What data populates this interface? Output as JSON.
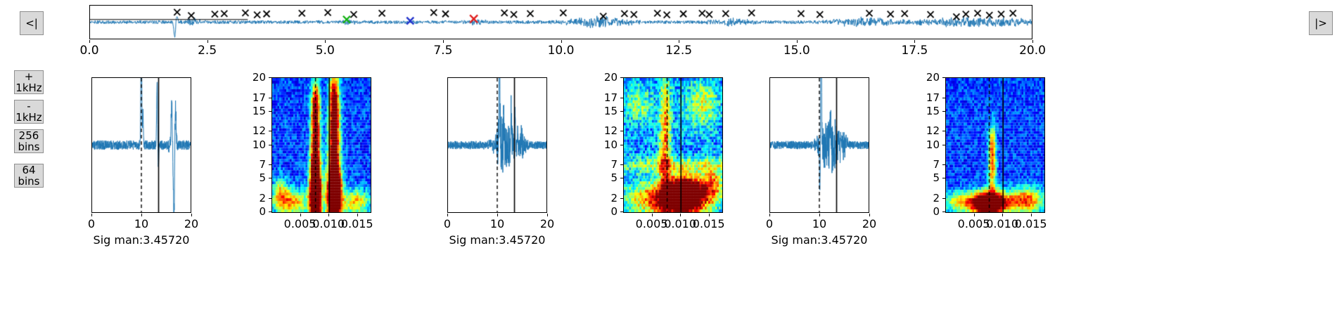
{
  "nav": {
    "prev_label": "<|",
    "next_label": "|>"
  },
  "controls": [
    {
      "line1": "+",
      "line2": "1kHz"
    },
    {
      "line1": "-",
      "line2": "1kHz"
    },
    {
      "line1": "256",
      "line2": "bins"
    },
    {
      "line1": "64",
      "line2": "bins"
    }
  ],
  "colors": {
    "line": "#1f77b4",
    "marker_black": "#000000",
    "marker_green": "#10b010",
    "marker_blue": "#2233cc",
    "marker_red": "#e02020",
    "button_bg": "#d9d9d9"
  },
  "chart_data": {
    "overview": {
      "type": "line",
      "xlim": [
        0,
        20
      ],
      "xticks": {
        "values": [
          0,
          2.5,
          5,
          7.5,
          10,
          12.5,
          15,
          17.5,
          20
        ],
        "labels": [
          "0.0",
          "2.5",
          "5.0",
          "7.5",
          "10.0",
          "12.5",
          "15.0",
          "17.5",
          "20.0"
        ]
      },
      "noise": 0.1,
      "seed": 11,
      "samples": 2600,
      "black_segment": {
        "x0": 0,
        "x1": 3.35,
        "fy": 0.42
      },
      "events": [
        {
          "type": "spike",
          "x": 1.8,
          "w": 0.02,
          "amp": 0.95,
          "dir": -1
        },
        {
          "type": "spike",
          "x": 1.84,
          "w": 0.02,
          "amp": 0.5,
          "dir": 1
        },
        {
          "type": "burst",
          "x": 2.2,
          "w": 0.15,
          "amp": 0.18
        },
        {
          "type": "burst",
          "x": 5.5,
          "w": 0.2,
          "amp": 0.12
        },
        {
          "type": "burst",
          "x": 8.2,
          "w": 0.2,
          "amp": 0.12
        },
        {
          "type": "burst",
          "x": 10.8,
          "w": 0.45,
          "amp": 0.3
        },
        {
          "type": "burst",
          "x": 13.6,
          "w": 0.3,
          "amp": 0.18
        },
        {
          "type": "burst",
          "x": 16.4,
          "w": 0.5,
          "amp": 0.25
        },
        {
          "type": "burst",
          "x": 18.9,
          "w": 1.0,
          "amp": 0.26
        }
      ],
      "markers": {
        "black_x": [
          [
            1.85,
            0.2
          ],
          [
            2.15,
            0.3
          ],
          [
            2.65,
            0.26
          ],
          [
            2.85,
            0.24
          ],
          [
            3.3,
            0.22
          ],
          [
            3.55,
            0.28
          ],
          [
            3.75,
            0.25
          ],
          [
            4.5,
            0.23
          ],
          [
            5.05,
            0.21
          ],
          [
            5.6,
            0.27
          ],
          [
            6.2,
            0.23
          ],
          [
            7.3,
            0.21
          ],
          [
            7.55,
            0.25
          ],
          [
            8.8,
            0.22
          ],
          [
            9.0,
            0.27
          ],
          [
            9.35,
            0.24
          ],
          [
            10.05,
            0.22
          ],
          [
            10.9,
            0.32
          ],
          [
            11.35,
            0.24
          ],
          [
            11.55,
            0.27
          ],
          [
            12.05,
            0.23
          ],
          [
            12.25,
            0.28
          ],
          [
            12.6,
            0.25
          ],
          [
            13.0,
            0.23
          ],
          [
            13.15,
            0.27
          ],
          [
            13.5,
            0.24
          ],
          [
            14.05,
            0.22
          ],
          [
            15.1,
            0.24
          ],
          [
            15.5,
            0.27
          ],
          [
            16.55,
            0.23
          ],
          [
            17.0,
            0.26
          ],
          [
            17.3,
            0.24
          ],
          [
            17.85,
            0.27
          ],
          [
            18.4,
            0.34
          ],
          [
            18.6,
            0.26
          ],
          [
            18.85,
            0.23
          ],
          [
            19.1,
            0.29
          ],
          [
            19.35,
            0.26
          ],
          [
            19.6,
            0.23
          ]
        ],
        "special": [
          {
            "x": 5.45,
            "fy": 0.42,
            "color": "#10b010",
            "size": 5
          },
          {
            "x": 6.8,
            "fy": 0.46,
            "color": "#2233cc",
            "size": 5
          },
          {
            "x": 8.15,
            "fy": 0.4,
            "color": "#e02020",
            "size": 5.5
          }
        ]
      }
    },
    "groups": [
      {
        "caption": "Sig man:3.45720",
        "waveform": {
          "type": "line",
          "xlim": [
            0,
            20
          ],
          "xticks": {
            "values": [
              0,
              10,
              20
            ],
            "labels": [
              "0",
              "10",
              "20"
            ]
          },
          "noise": 0.07,
          "seed": 3,
          "vlines": {
            "dashed_x": 10,
            "solid_x": 13.5
          },
          "events": [
            {
              "type": "spike",
              "x": 10.0,
              "w": 0.1,
              "amp": 1.7,
              "dir": 1
            },
            {
              "type": "spike",
              "x": 10.3,
              "w": 0.08,
              "amp": 0.55,
              "dir": 1
            },
            {
              "type": "spike",
              "x": 10.15,
              "w": 0.06,
              "amp": 0.35,
              "dir": -1
            },
            {
              "type": "spike",
              "x": 13.2,
              "w": 0.1,
              "amp": 0.9,
              "dir": 1
            },
            {
              "type": "spike",
              "x": 13.45,
              "w": 0.08,
              "amp": 0.35,
              "dir": -1
            },
            {
              "type": "burst",
              "x": 16.5,
              "w": 0.5,
              "amp": 0.25
            },
            {
              "type": "spike",
              "x": 16.15,
              "w": 0.1,
              "amp": 0.6,
              "dir": 1
            },
            {
              "type": "spike",
              "x": 16.6,
              "w": 0.1,
              "amp": 1.15,
              "dir": -1
            },
            {
              "type": "spike",
              "x": 16.95,
              "w": 0.1,
              "amp": 0.55,
              "dir": 1
            }
          ]
        },
        "spectrogram": {
          "type": "heatmap",
          "xlim": [
            0,
            0.0175
          ],
          "ylim": [
            0,
            20
          ],
          "xticks": {
            "values": [
              0.005,
              0.01,
              0.015
            ],
            "labels": [
              "0.005",
              "0.010",
              "0.015"
            ]
          },
          "yticks": {
            "values": [
              0,
              2,
              5,
              7,
              10,
              12,
              15,
              17,
              20
            ],
            "labels": [
              "0",
              "2",
              "5",
              "7",
              "10",
              "12",
              "15",
              "17",
              "20"
            ]
          },
          "base": 0.08,
          "noise": 0.22,
          "seed": 21,
          "vlines": {
            "dashed_frac": 0.44,
            "solid_frac": 0.58
          },
          "blobs": [
            {
              "cx": 0.44,
              "cy": 2.5,
              "sx": 0.04,
              "sy": 3.5,
              "amp": 1.5
            },
            {
              "cx": 0.44,
              "cy": 10,
              "sx": 0.032,
              "sy": 5,
              "amp": 0.85
            },
            {
              "cx": 0.44,
              "cy": 16,
              "sx": 0.03,
              "sy": 2.5,
              "amp": 0.5
            },
            {
              "cx": 0.63,
              "cy": 2.5,
              "sx": 0.05,
              "sy": 3,
              "amp": 1.5
            },
            {
              "cx": 0.63,
              "cy": 10,
              "sx": 0.04,
              "sy": 5,
              "amp": 0.9
            },
            {
              "cx": 0.63,
              "cy": 17,
              "sx": 0.035,
              "sy": 3,
              "amp": 0.6
            },
            {
              "cx": 0.2,
              "cy": 1.5,
              "sx": 0.12,
              "sy": 1.3,
              "amp": 0.55
            },
            {
              "cx": 0.85,
              "cy": 1.5,
              "sx": 0.1,
              "sy": 1.3,
              "amp": 0.5
            },
            {
              "cx": 0.08,
              "cy": 3,
              "sx": 0.05,
              "sy": 1.5,
              "amp": 0.4
            }
          ]
        }
      },
      {
        "caption": "Sig man:3.45720",
        "waveform": {
          "type": "line",
          "xlim": [
            0,
            20
          ],
          "xticks": {
            "values": [
              0,
              10,
              20
            ],
            "labels": [
              "0",
              "10",
              "20"
            ]
          },
          "noise": 0.06,
          "seed": 5,
          "vlines": {
            "dashed_x": 10,
            "solid_x": 13.5
          },
          "events": [
            {
              "type": "burst",
              "x": 12.2,
              "w": 1.8,
              "amp": 0.3
            },
            {
              "type": "burst",
              "x": 10.7,
              "w": 0.5,
              "amp": 0.45
            },
            {
              "type": "spike",
              "x": 10.45,
              "w": 0.09,
              "amp": 1.7,
              "dir": 1
            },
            {
              "type": "spike",
              "x": 11.3,
              "w": 0.08,
              "amp": 0.5,
              "dir": 1
            },
            {
              "type": "spike",
              "x": 12.8,
              "w": 0.08,
              "amp": 0.5,
              "dir": 1
            },
            {
              "type": "spike",
              "x": 13.6,
              "w": 0.08,
              "amp": 0.45,
              "dir": 1
            },
            {
              "type": "burst",
              "x": 14.8,
              "w": 0.7,
              "amp": 0.2
            }
          ]
        },
        "spectrogram": {
          "type": "heatmap",
          "xlim": [
            0,
            0.0175
          ],
          "ylim": [
            0,
            20
          ],
          "xticks": {
            "values": [
              0.005,
              0.01,
              0.015
            ],
            "labels": [
              "0.005",
              "0.010",
              "0.015"
            ]
          },
          "yticks": {
            "values": [
              0,
              2,
              5,
              7,
              10,
              12,
              15,
              17,
              20
            ],
            "labels": [
              "0",
              "2",
              "5",
              "7",
              "10",
              "12",
              "15",
              "17",
              "20"
            ]
          },
          "base": 0.12,
          "noise": 0.3,
          "seed": 22,
          "vlines": {
            "dashed_frac": 0.44,
            "solid_frac": 0.58
          },
          "blobs": [
            {
              "cx": 0.62,
              "cy": 2.5,
              "sx": 0.13,
              "sy": 1.8,
              "amp": 1.25
            },
            {
              "cx": 0.4,
              "cy": 2,
              "sx": 0.25,
              "sy": 1.8,
              "amp": 0.6
            },
            {
              "cx": 0.42,
              "cy": 11,
              "sx": 0.04,
              "sy": 7,
              "amp": 0.5
            },
            {
              "cx": 0.5,
              "cy": 7,
              "sx": 0.45,
              "sy": 0.8,
              "amp": 0.28
            },
            {
              "cx": 0.8,
              "cy": 16,
              "sx": 0.12,
              "sy": 2.5,
              "amp": 0.3
            },
            {
              "cx": 0.15,
              "cy": 16,
              "sx": 0.1,
              "sy": 2,
              "amp": 0.25
            },
            {
              "cx": 0.9,
              "cy": 4,
              "sx": 0.08,
              "sy": 2,
              "amp": 0.45
            }
          ]
        }
      },
      {
        "caption": "Sig man:3.45720",
        "waveform": {
          "type": "line",
          "xlim": [
            0,
            20
          ],
          "xticks": {
            "values": [
              0,
              10,
              20
            ],
            "labels": [
              "0",
              "10",
              "20"
            ]
          },
          "noise": 0.06,
          "seed": 9,
          "vlines": {
            "dashed_x": 10,
            "solid_x": 13.5
          },
          "events": [
            {
              "type": "spike",
              "x": 10.35,
              "w": 0.09,
              "amp": 1.7,
              "dir": 1
            },
            {
              "type": "spike",
              "x": 10.1,
              "w": 0.08,
              "amp": 0.7,
              "dir": -1
            },
            {
              "type": "burst",
              "x": 11.5,
              "w": 1.2,
              "amp": 0.35
            },
            {
              "type": "spike",
              "x": 12.2,
              "w": 0.08,
              "amp": 0.5,
              "dir": 1
            },
            {
              "type": "burst",
              "x": 13.2,
              "w": 1.0,
              "amp": 0.28
            },
            {
              "type": "burst",
              "x": 14.6,
              "w": 0.7,
              "amp": 0.18
            }
          ]
        },
        "spectrogram": {
          "type": "heatmap",
          "xlim": [
            0,
            0.0175
          ],
          "ylim": [
            0,
            20
          ],
          "xticks": {
            "values": [
              0.005,
              0.01,
              0.015
            ],
            "labels": [
              "0.005",
              "0.010",
              "0.015"
            ]
          },
          "yticks": {
            "values": [
              0,
              2,
              5,
              7,
              10,
              12,
              15,
              17,
              20
            ],
            "labels": [
              "0",
              "2",
              "5",
              "7",
              "10",
              "12",
              "15",
              "17",
              "20"
            ]
          },
          "base": 0.09,
          "noise": 0.2,
          "seed": 23,
          "vlines": {
            "dashed_frac": 0.44,
            "solid_frac": 0.58
          },
          "blobs": [
            {
              "cx": 0.42,
              "cy": 1.3,
              "sx": 0.1,
              "sy": 1.1,
              "amp": 1.2
            },
            {
              "cx": 0.6,
              "cy": 1.5,
              "sx": 0.2,
              "sy": 1.2,
              "amp": 0.55
            },
            {
              "cx": 0.15,
              "cy": 1.5,
              "sx": 0.12,
              "sy": 1.1,
              "amp": 0.45
            },
            {
              "cx": 0.47,
              "cy": 6.5,
              "sx": 0.028,
              "sy": 3,
              "amp": 0.55
            },
            {
              "cx": 0.47,
              "cy": 10.5,
              "sx": 0.025,
              "sy": 2,
              "amp": 0.35
            },
            {
              "cx": 0.85,
              "cy": 2,
              "sx": 0.1,
              "sy": 1.3,
              "amp": 0.4
            }
          ]
        }
      }
    ]
  }
}
